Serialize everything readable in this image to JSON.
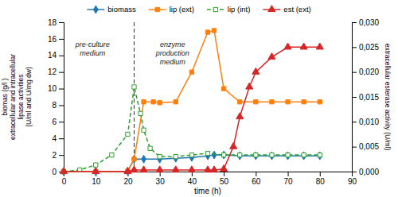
{
  "chart_data": {
    "type": "line",
    "xlabel": "time (h)",
    "ylabel": "biomas (g/l )\nextracellular and intracellular\nlipase activities\n(U/ml and U/mg dw)",
    "y2label": "extracellular esterase activity (U/ml)",
    "xlim": [
      0,
      90
    ],
    "xticks": [
      0,
      10,
      20,
      30,
      40,
      50,
      60,
      70,
      80,
      90
    ],
    "ylim": [
      0,
      18
    ],
    "yticks": [
      0,
      2,
      4,
      6,
      8,
      10,
      12,
      14,
      16,
      18
    ],
    "y2lim": [
      0,
      0.03
    ],
    "y2ticks": [
      {
        "value": 0,
        "label": "0,000"
      },
      {
        "value": 0.005,
        "label": "0,005"
      },
      {
        "value": 0.01,
        "label": "0,010"
      },
      {
        "value": 0.015,
        "label": "0,015"
      },
      {
        "value": 0.02,
        "label": "0,020"
      },
      {
        "value": 0.025,
        "label": "0,025"
      },
      {
        "value": 0.03,
        "label": "0,030"
      }
    ],
    "legend": "top",
    "series": [
      {
        "name": "biomass",
        "marker": "diamond",
        "line_style": "solid",
        "x": [
          0,
          10,
          20,
          22,
          25,
          30,
          35,
          40,
          45,
          47,
          50,
          55,
          60,
          65,
          70,
          75,
          80
        ],
        "values": [
          0,
          0,
          0.05,
          1.5,
          1.5,
          1.5,
          1.6,
          1.7,
          1.9,
          2.0,
          2.0,
          1.9,
          1.9,
          1.9,
          1.9,
          1.9,
          1.9
        ]
      },
      {
        "name": "lip (ext)",
        "marker": "square",
        "line_style": "solid",
        "x": [
          0,
          10,
          20,
          22,
          25,
          28,
          30,
          35,
          40,
          45,
          47,
          50,
          55,
          60,
          65,
          70,
          75,
          80
        ],
        "values": [
          0,
          0,
          0.05,
          1.5,
          8.4,
          8.4,
          8.3,
          8.4,
          12.0,
          16.8,
          17.0,
          10.0,
          8.4,
          8.4,
          8.4,
          8.4,
          8.4,
          8.4
        ]
      },
      {
        "name": "lip (int)",
        "marker": "square-open",
        "line_style": "dashed",
        "x": [
          0,
          5,
          10,
          15,
          20,
          22,
          24,
          25,
          27,
          30,
          35,
          40,
          45,
          50,
          55,
          60,
          65,
          70,
          75,
          80
        ],
        "values": [
          0,
          0.2,
          0.8,
          2.0,
          4.5,
          10.2,
          7.0,
          5.0,
          2.8,
          1.8,
          1.8,
          2.0,
          2.2,
          2.0,
          2.0,
          2.0,
          2.0,
          2.0,
          2.0,
          2.0
        ]
      },
      {
        "name": "est (ext)",
        "marker": "triangle",
        "line_style": "solid",
        "axis": "y2",
        "x": [
          0,
          10,
          20,
          22,
          25,
          30,
          35,
          40,
          45,
          47,
          50,
          53,
          55,
          58,
          60,
          65,
          70,
          75,
          80
        ],
        "values": [
          0,
          0,
          0,
          0.0003,
          0.0003,
          0.0003,
          0.0003,
          0.0003,
          0.0003,
          0.0003,
          0.0005,
          0.005,
          0.011,
          0.017,
          0.02,
          0.023,
          0.025,
          0.025,
          0.025
        ]
      }
    ],
    "vlines": [
      22
    ],
    "annotations": [
      {
        "text": "pre-culture\nmedium",
        "x": 9,
        "y": 15.8
      },
      {
        "text": "enzyme\nproduction\nmedium",
        "x": 34,
        "y": 15.8
      }
    ]
  }
}
